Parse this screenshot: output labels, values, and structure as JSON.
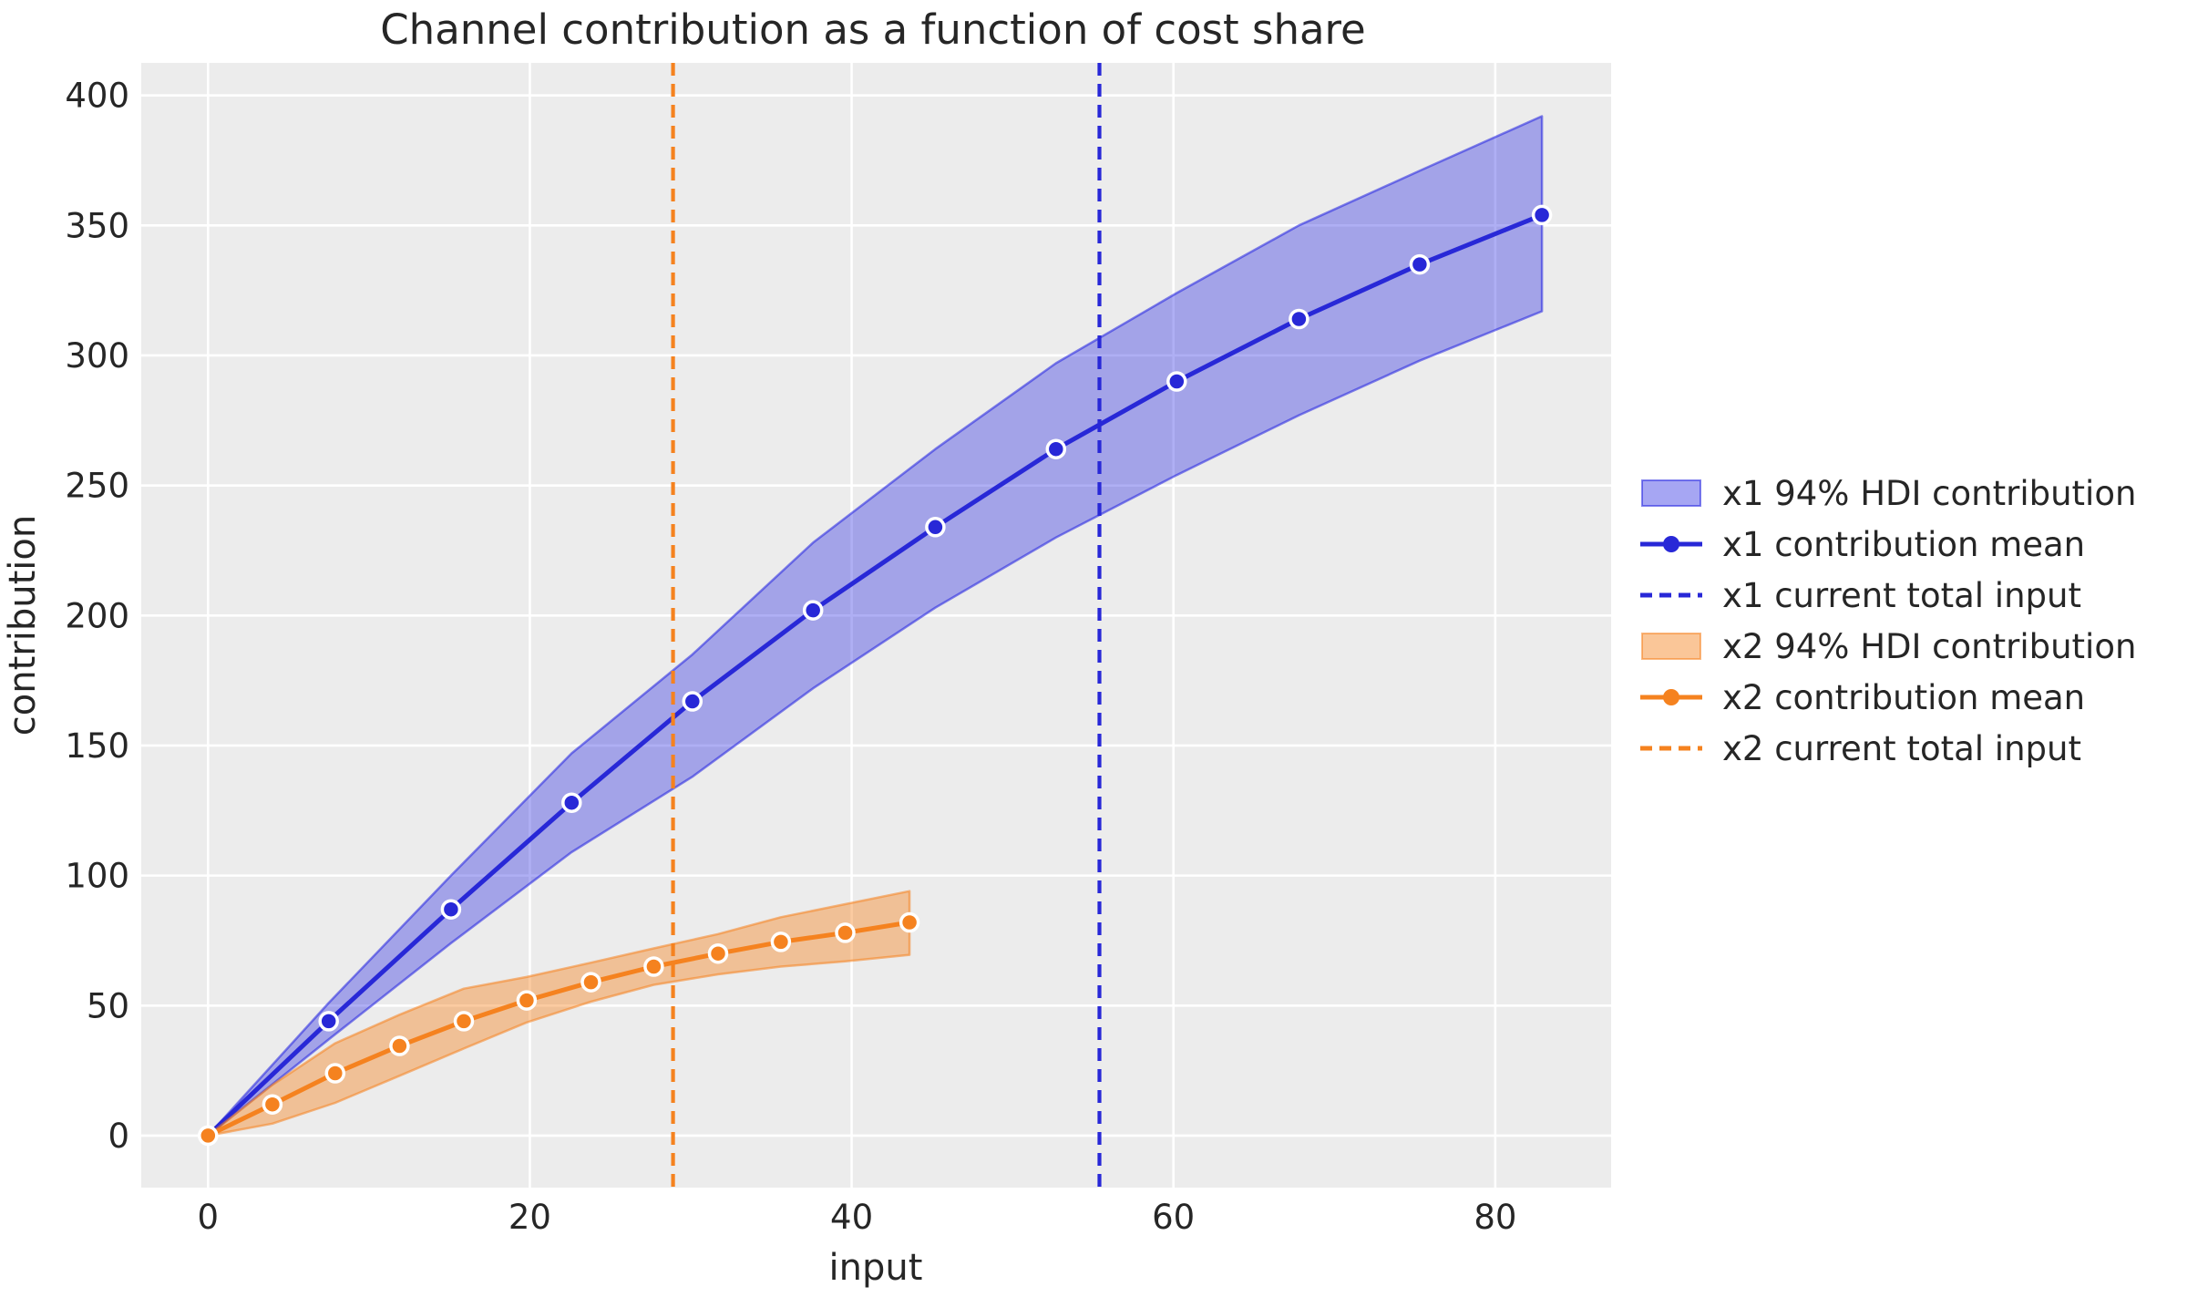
{
  "figure": {
    "background": "#ffffff",
    "plot_background": "#ececec",
    "grid_color": "#ffffff",
    "text_color": "#262626"
  },
  "chart_data": {
    "type": "line",
    "title": "Channel contribution as a function of cost share",
    "xlabel": "input",
    "ylabel": "contribution",
    "xlim": [
      -4.15,
      87.2
    ],
    "ylim": [
      -20,
      412.5
    ],
    "x_ticks": [
      0,
      20,
      40,
      60,
      80
    ],
    "y_ticks": [
      0,
      50,
      100,
      150,
      200,
      250,
      300,
      350,
      400
    ],
    "grid": true,
    "legend_position": "right",
    "series": [
      {
        "name": "x1",
        "color": "#2828d7",
        "band_color": "#2020e0",
        "band_alpha": 0.36,
        "band_edge_alpha": 0.55,
        "x": [
          0,
          7.5,
          15.1,
          22.6,
          30.1,
          37.6,
          45.2,
          52.7,
          60.2,
          67.8,
          75.3,
          82.9
        ],
        "mean": [
          0,
          44,
          87,
          128,
          167,
          202,
          234,
          264,
          290,
          314,
          335,
          354
        ],
        "hdi_lower": [
          0,
          37,
          74,
          109,
          138,
          172,
          203,
          230,
          254,
          277,
          298,
          317
        ],
        "hdi_upper": [
          0,
          51,
          100,
          147,
          185,
          228,
          264,
          297,
          324,
          350,
          371,
          392
        ],
        "current_total_input": 55.4
      },
      {
        "name": "x2",
        "color": "#f5821f",
        "band_color": "#f5821f",
        "band_alpha": 0.42,
        "band_edge_alpha": 0.55,
        "x": [
          0,
          4,
          7.9,
          11.9,
          15.9,
          19.8,
          23.8,
          27.7,
          31.7,
          35.6,
          39.6,
          43.6
        ],
        "mean": [
          0,
          12,
          24,
          34.5,
          44,
          52,
          59,
          65,
          70,
          74.5,
          78,
          82
        ],
        "hdi_lower": [
          0,
          4.6,
          12.6,
          23,
          33.5,
          43.5,
          51.5,
          58,
          62,
          65,
          67,
          69.5
        ],
        "hdi_upper": [
          0,
          19.5,
          35.5,
          46.5,
          56.5,
          61,
          66.5,
          72,
          77.5,
          84,
          89,
          94
        ],
        "current_total_input": 28.9
      }
    ],
    "legend": [
      {
        "label": "x1 94% HDI contribution",
        "swatch": "band",
        "series": 0
      },
      {
        "label": "x1 contribution mean",
        "swatch": "line-dot",
        "series": 0
      },
      {
        "label": "x1 current total input",
        "swatch": "dashed",
        "series": 0
      },
      {
        "label": "x2 94% HDI contribution",
        "swatch": "band",
        "series": 1
      },
      {
        "label": "x2 contribution mean",
        "swatch": "line-dot",
        "series": 1
      },
      {
        "label": "x2 current total input",
        "swatch": "dashed",
        "series": 1
      }
    ]
  }
}
